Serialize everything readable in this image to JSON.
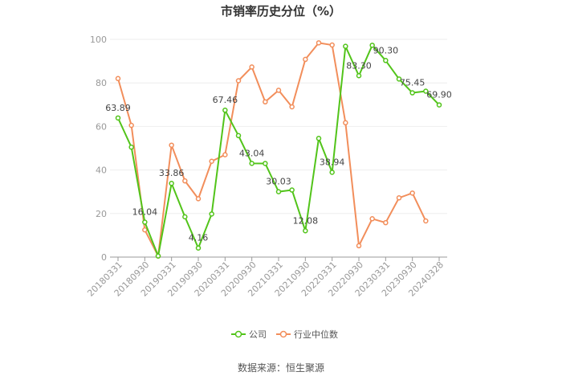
{
  "chart_data": {
    "type": "line",
    "title": "市销率历史分位（%）",
    "xlabel": "",
    "ylabel": "",
    "ylim": [
      0,
      100
    ],
    "yticks": [
      0,
      20,
      40,
      60,
      80,
      100
    ],
    "x": [
      "20180331",
      "20180630",
      "20180930",
      "20181231",
      "20190331",
      "20190630",
      "20190930",
      "20191231",
      "20200331",
      "20200630",
      "20200930",
      "20201231",
      "20210331",
      "20210630",
      "20210930",
      "20211231",
      "20220331",
      "20220630",
      "20220930",
      "20221231",
      "20230331",
      "20230630",
      "20230930",
      "20231231",
      "20240328"
    ],
    "xticks": [
      "20180331",
      "20180930",
      "20190331",
      "20190930",
      "20200331",
      "20200930",
      "20210331",
      "20210930",
      "20220331",
      "20220930",
      "20230331",
      "20230930",
      "20240328"
    ],
    "series": [
      {
        "name": "公司",
        "color": "#52c41a",
        "values": [
          63.89,
          50.5,
          16.04,
          0.5,
          33.86,
          18.5,
          4.16,
          19.8,
          67.46,
          55.8,
          43.04,
          43.0,
          30.03,
          30.8,
          12.08,
          54.5,
          38.94,
          96.8,
          83.3,
          97.3,
          90.3,
          81.8,
          75.45,
          76.2,
          69.9
        ],
        "labels": [
          "63.89",
          "",
          "16.04",
          "",
          "33.86",
          "",
          "4.16",
          "",
          "67.46",
          "",
          "43.04",
          "",
          "30.03",
          "",
          "12.08",
          "",
          "38.94",
          "",
          "83.30",
          "",
          "90.30",
          "",
          "75.45",
          "",
          "69.90"
        ]
      },
      {
        "name": "行业中位数",
        "color": "#f28e5b",
        "values": [
          82.0,
          60.5,
          12.5,
          0.5,
          51.4,
          35.0,
          26.8,
          44.0,
          47.0,
          81.0,
          87.3,
          71.3,
          76.6,
          69.0,
          90.8,
          98.4,
          97.4,
          61.7,
          5.2,
          17.6,
          15.8,
          27.2,
          29.4,
          16.6,
          null
        ],
        "labels": []
      }
    ],
    "legend_position": "bottom",
    "grid": true
  },
  "source": "数据来源：恒生聚源"
}
